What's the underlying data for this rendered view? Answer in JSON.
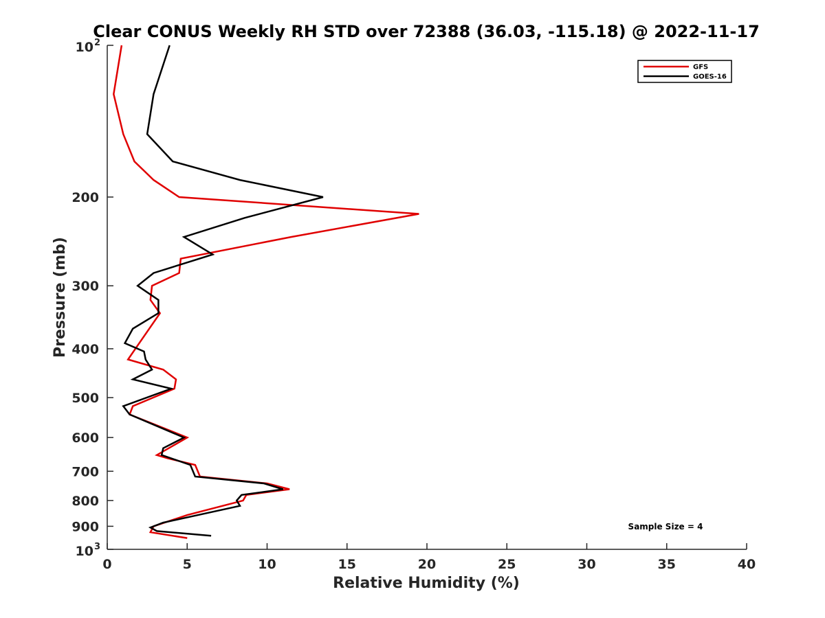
{
  "chart_data": {
    "type": "line",
    "title": "Clear CONUS Weekly RH STD over 72388 (36.03, -115.18) @ 2022-11-17",
    "xlabel": "Relative Humidity (%)",
    "ylabel": "Pressure (mb)",
    "xlim": [
      0,
      40
    ],
    "ylim": [
      100,
      1000
    ],
    "y_scale": "log",
    "y_reversed": true,
    "x_ticks": [
      0,
      5,
      10,
      15,
      20,
      25,
      30,
      35,
      40
    ],
    "y_ticks": [
      {
        "value": 100,
        "label": "10",
        "sup": "2"
      },
      {
        "value": 200,
        "label": "200"
      },
      {
        "value": 300,
        "label": "300"
      },
      {
        "value": 400,
        "label": "400"
      },
      {
        "value": 500,
        "label": "500"
      },
      {
        "value": 600,
        "label": "600"
      },
      {
        "value": 700,
        "label": "700"
      },
      {
        "value": 800,
        "label": "800"
      },
      {
        "value": 900,
        "label": "900"
      },
      {
        "value": 1000,
        "label": "10",
        "sup": "3"
      }
    ],
    "grid": false,
    "legend_position": "top-right",
    "annotation": "Sample Size = 4",
    "series": [
      {
        "name": "GFS",
        "color": "#e00000",
        "points": [
          [
            0.9,
            100
          ],
          [
            0.4,
            125
          ],
          [
            1.0,
            150
          ],
          [
            1.7,
            170
          ],
          [
            2.9,
            185
          ],
          [
            4.5,
            200
          ],
          [
            19.5,
            216
          ],
          [
            11.5,
            240
          ],
          [
            4.6,
            265
          ],
          [
            4.5,
            283
          ],
          [
            2.8,
            300
          ],
          [
            2.7,
            320
          ],
          [
            3.3,
            340
          ],
          [
            2.0,
            390
          ],
          [
            1.3,
            420
          ],
          [
            3.5,
            440
          ],
          [
            4.3,
            460
          ],
          [
            4.2,
            480
          ],
          [
            1.6,
            520
          ],
          [
            1.4,
            540
          ],
          [
            5.0,
            600
          ],
          [
            3.1,
            650
          ],
          [
            3.8,
            660
          ],
          [
            5.5,
            680
          ],
          [
            5.8,
            717
          ],
          [
            10.0,
            740
          ],
          [
            11.4,
            760
          ],
          [
            8.7,
            780
          ],
          [
            8.5,
            800
          ],
          [
            5.0,
            855
          ],
          [
            2.9,
            900
          ],
          [
            2.7,
            925
          ],
          [
            5.0,
            950
          ]
        ]
      },
      {
        "name": "GOES-16",
        "color": "#000000",
        "points": [
          [
            3.9,
            100
          ],
          [
            2.9,
            125
          ],
          [
            2.5,
            150
          ],
          [
            4.1,
            170
          ],
          [
            8.3,
            185
          ],
          [
            13.5,
            200
          ],
          [
            8.6,
            220
          ],
          [
            4.8,
            240
          ],
          [
            6.6,
            260
          ],
          [
            2.9,
            283
          ],
          [
            1.9,
            300
          ],
          [
            3.2,
            320
          ],
          [
            3.2,
            340
          ],
          [
            1.6,
            365
          ],
          [
            1.1,
            390
          ],
          [
            2.3,
            405
          ],
          [
            2.4,
            420
          ],
          [
            2.8,
            440
          ],
          [
            1.6,
            460
          ],
          [
            4.0,
            480
          ],
          [
            1.0,
            520
          ],
          [
            1.4,
            540
          ],
          [
            4.8,
            600
          ],
          [
            3.5,
            630
          ],
          [
            3.4,
            650
          ],
          [
            5.2,
            680
          ],
          [
            5.5,
            717
          ],
          [
            9.8,
            740
          ],
          [
            11.0,
            760
          ],
          [
            8.4,
            780
          ],
          [
            8.1,
            800
          ],
          [
            8.3,
            820
          ],
          [
            3.5,
            885
          ],
          [
            2.7,
            905
          ],
          [
            3.1,
            920
          ],
          [
            6.5,
            940
          ]
        ]
      }
    ]
  }
}
